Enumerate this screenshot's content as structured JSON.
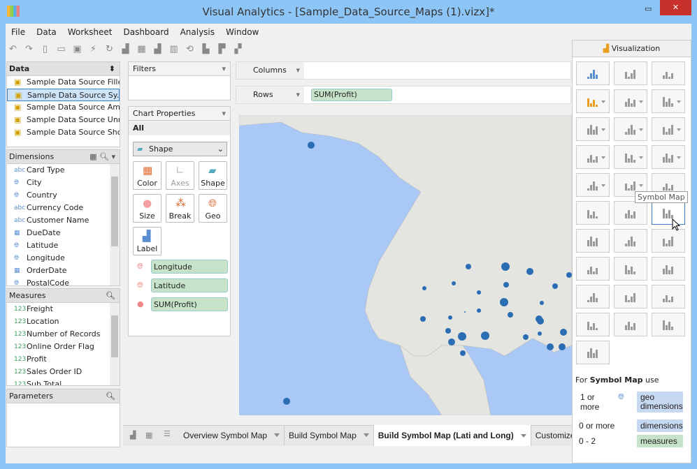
{
  "window": {
    "title": "Visual Analytics - [Sample_Data_Source_Maps (1).vizx]*",
    "minimize": "▭",
    "close": "✕"
  },
  "menu": [
    "File",
    "Data",
    "Worksheet",
    "Dashboard",
    "Analysis",
    "Window"
  ],
  "toolbar": [
    "undo-icon",
    "redo-icon",
    "new-icon",
    "open-icon",
    "save-icon",
    "connect-icon",
    "refresh-icon",
    "new-worksheet-icon",
    "new-dashboard-icon",
    "delete-worksheet-icon",
    "clear-icon",
    "swap-icon",
    "sort-asc-icon",
    "sort-desc-icon",
    "show-me-icon"
  ],
  "data": {
    "title": "Data",
    "sources": [
      "Sample Data Source Fille...",
      "Sample Data Source Sy...",
      "Sample Data Source Am...",
      "Sample Data Source Unr...",
      "Sample Data Source Sho..."
    ]
  },
  "dimensions": {
    "title": "Dimensions",
    "items": [
      {
        "t": "abc",
        "l": "Card Type"
      },
      {
        "t": "geo",
        "l": "City"
      },
      {
        "t": "geo",
        "l": "Country"
      },
      {
        "t": "abc",
        "l": "Currency Code"
      },
      {
        "t": "abc",
        "l": "Customer Name"
      },
      {
        "t": "date",
        "l": "DueDate"
      },
      {
        "t": "geo",
        "l": "Latitude"
      },
      {
        "t": "geo",
        "l": "Longitude"
      },
      {
        "t": "date",
        "l": "OrderDate"
      },
      {
        "t": "geo",
        "l": "PostalCode"
      }
    ]
  },
  "measures": {
    "title": "Measures",
    "items": [
      {
        "t": "123",
        "l": "Freight"
      },
      {
        "t": "123",
        "l": "Location"
      },
      {
        "t": "x123",
        "l": "Number of Records"
      },
      {
        "t": "123",
        "l": "Online Order Flag"
      },
      {
        "t": "123",
        "l": "Profit"
      },
      {
        "t": "123",
        "l": "Sales Order ID"
      },
      {
        "t": "123",
        "l": "Sub Total"
      }
    ]
  },
  "parameters": {
    "title": "Parameters"
  },
  "filters": {
    "title": "Filters"
  },
  "chart_properties": {
    "title": "Chart Properties",
    "all": "All",
    "mark_type": "Shape",
    "buttons": [
      "Color",
      "Axes",
      "Shape",
      "Size",
      "Break",
      "Geo",
      "Label"
    ],
    "fields": [
      "Longitude",
      "Latitude",
      "SUM(Profit)"
    ]
  },
  "shelves": {
    "columns": "Columns",
    "rows": "Rows",
    "rows_pill": "SUM(Profit)"
  },
  "tabs": [
    "Overview Symbol Map",
    "Build Symbol Map",
    "Build Symbol Map (Lati and Long)",
    "Customize Symbol"
  ],
  "active_tab": 2,
  "visualization": {
    "title": "Visualization",
    "tooltip": "Symbol Map",
    "selected": "symbol-map",
    "hint_prefix": "For",
    "hint_name": "Symbol Map",
    "hint_suffix": "use",
    "req": [
      {
        "count": "1 or more",
        "type": "geo dimensions"
      },
      {
        "count": "0 or more",
        "type": "dimensions"
      },
      {
        "count": "0 - 2",
        "type": "measures"
      }
    ]
  },
  "colors": {
    "ocean": "#a9c8f5",
    "land": "#e4e4e0",
    "dot": "#2a6db3",
    "pill": "#c6e3c9",
    "geo": "#c7d9f2"
  }
}
